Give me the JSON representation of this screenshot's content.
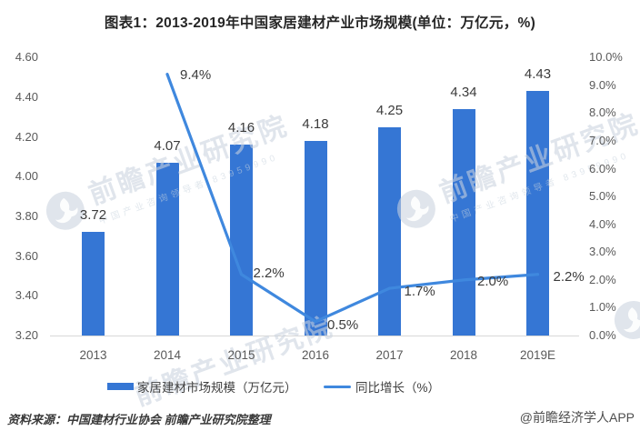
{
  "title": "图表1：2013-2019年中国家居建材产业市场规模(单位：万亿元，%)",
  "watermark": {
    "brand_large": "前瞻产业研究院",
    "brand_small": "中国产业咨询领导者 83959990",
    "logo": "qianzhan-globe-icon"
  },
  "chart_data": {
    "type": "bar+line",
    "title": "图表1：2013-2019年中国家居建材产业市场规模(单位：万亿元，%)",
    "categories": [
      "2013",
      "2014",
      "2015",
      "2016",
      "2017",
      "2018",
      "2019E"
    ],
    "series": [
      {
        "name": "家居建材市场规模（万亿元）",
        "type": "bar",
        "axis": "left",
        "color": "#3576d4",
        "values": [
          3.72,
          4.07,
          4.16,
          4.18,
          4.25,
          4.34,
          4.43
        ],
        "labels": [
          "3.72",
          "4.07",
          "4.16",
          "4.18",
          "4.25",
          "4.34",
          "4.43"
        ]
      },
      {
        "name": "同比增长（%）",
        "type": "line",
        "axis": "right",
        "color": "#3f88de",
        "values": [
          null,
          9.4,
          2.2,
          0.5,
          1.7,
          2.0,
          2.2
        ],
        "labels": [
          null,
          "9.4%",
          "2.2%",
          "0.5%",
          "1.7%",
          "2.0%",
          "2.2%"
        ]
      }
    ],
    "left_axis": {
      "min": 3.2,
      "max": 4.6,
      "step": 0.2,
      "ticks": [
        "4.60",
        "4.40",
        "4.20",
        "4.00",
        "3.80",
        "3.60",
        "3.40",
        "3.20"
      ]
    },
    "right_axis": {
      "min": 0,
      "max": 10,
      "step": 1,
      "ticks": [
        "10.0%",
        "9.0%",
        "8.0%",
        "7.0%",
        "6.0%",
        "5.0%",
        "4.0%",
        "3.0%",
        "2.0%",
        "1.0%",
        "0.0%"
      ]
    },
    "grid": "off",
    "legend_position": "bottom"
  },
  "footer": {
    "source": "资料来源：中国建材行业协会 前瞻产业研究院整理",
    "credit": "@前瞻经济学人APP"
  }
}
